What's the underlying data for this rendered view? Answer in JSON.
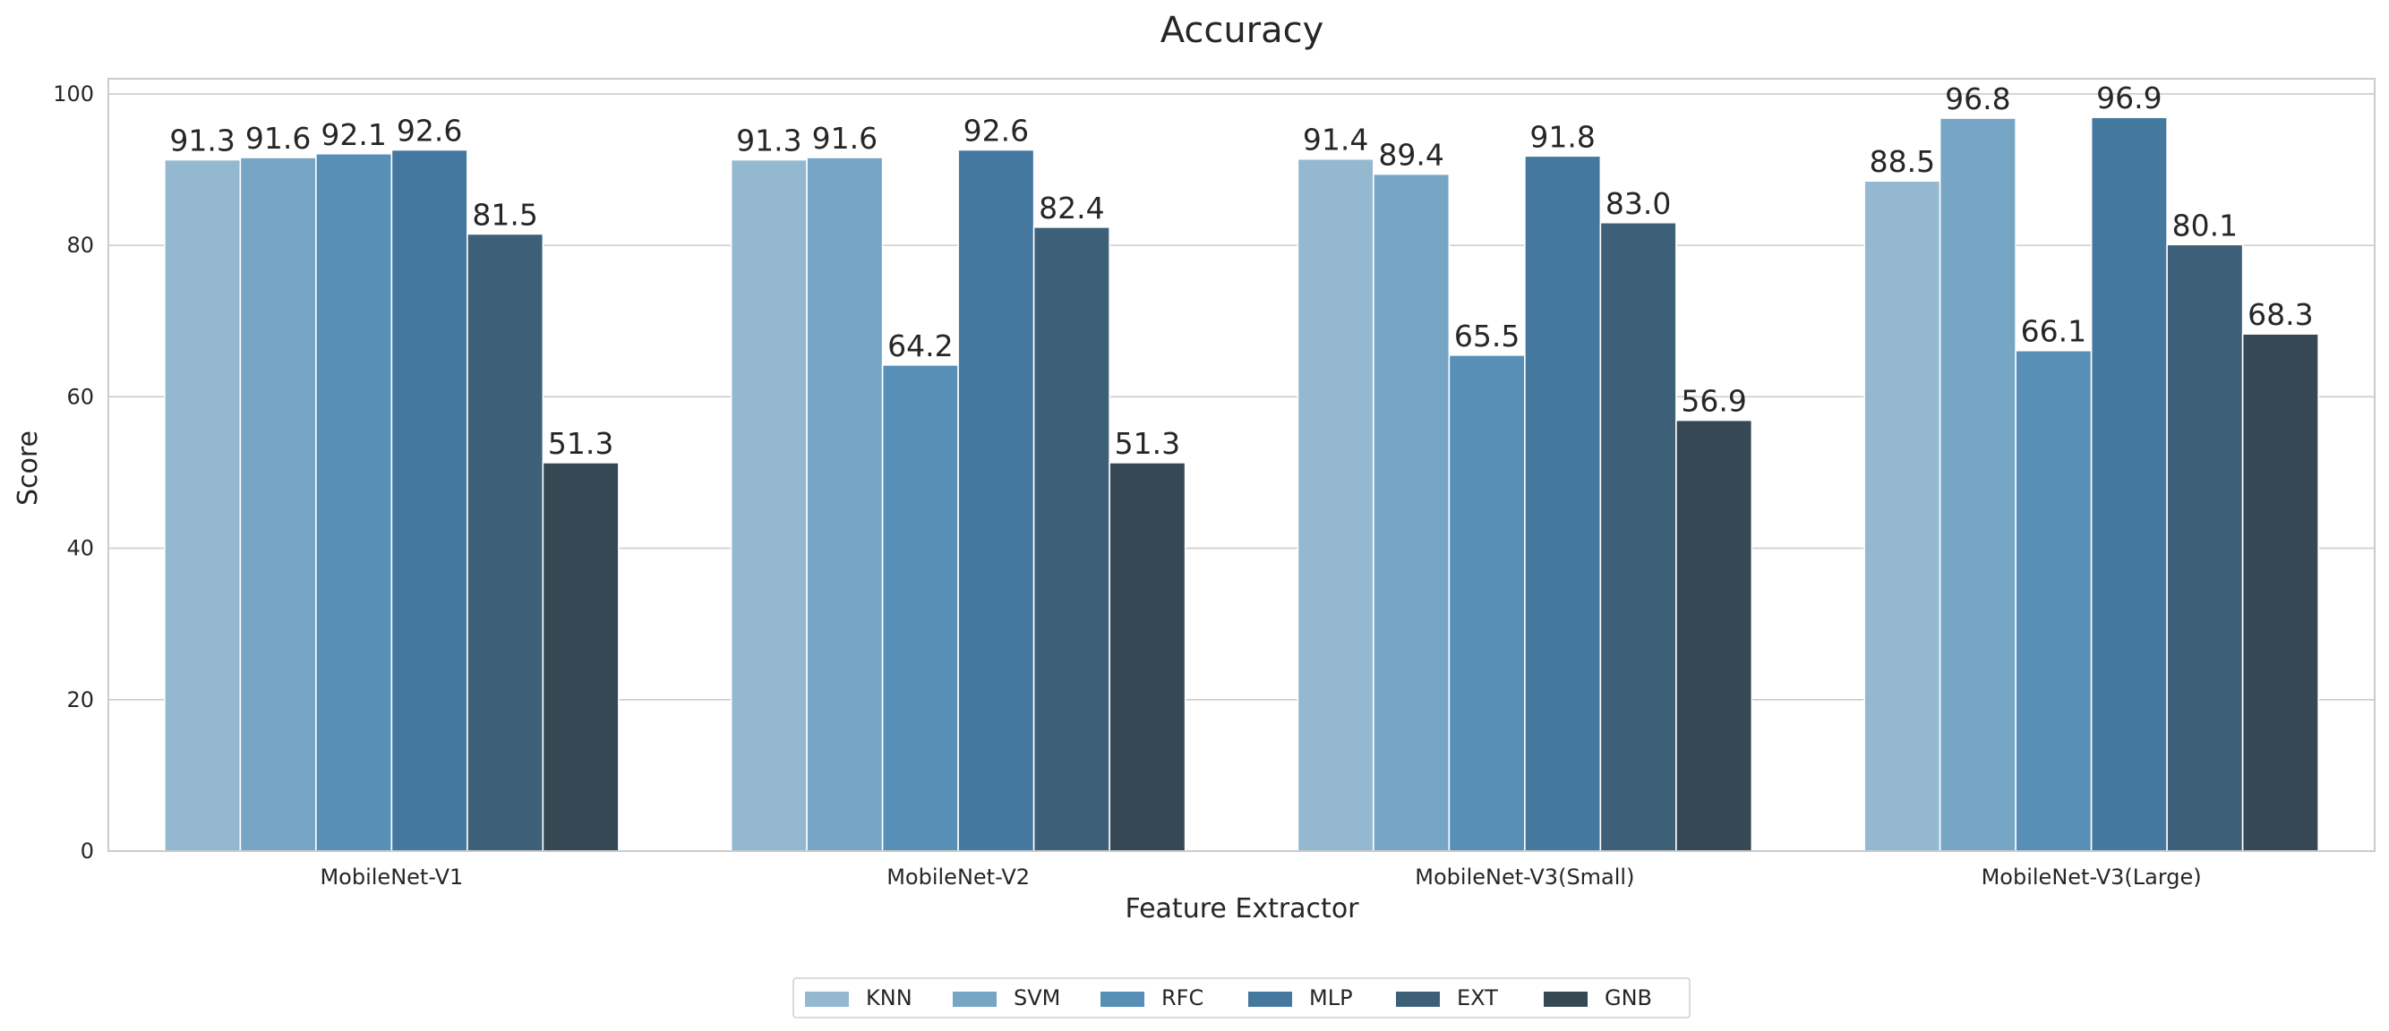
{
  "chart_data": {
    "type": "bar",
    "title": "Accuracy",
    "xlabel": "Feature Extractor",
    "ylabel": "Score",
    "ylim": [
      0,
      102
    ],
    "yticks": [
      0,
      20,
      40,
      60,
      80,
      100
    ],
    "grid": true,
    "legend_placement": "bottom-center",
    "categories": [
      "MobileNet-V1",
      "MobileNet-V2",
      "MobileNet-V3(Small)",
      "MobileNet-V3(Large)"
    ],
    "series": [
      {
        "name": "KNN",
        "color": "#95b8d1",
        "values": [
          91.3,
          91.3,
          91.4,
          88.5
        ]
      },
      {
        "name": "SVM",
        "color": "#76a5c6",
        "values": [
          91.6,
          91.6,
          89.4,
          96.8
        ]
      },
      {
        "name": "RFC",
        "color": "#588fb7",
        "values": [
          92.1,
          64.2,
          65.5,
          66.1
        ]
      },
      {
        "name": "MLP",
        "color": "#44789e",
        "values": [
          92.6,
          92.6,
          91.8,
          96.9
        ]
      },
      {
        "name": "EXT",
        "color": "#3d5f78",
        "values": [
          81.5,
          82.4,
          83.0,
          80.1
        ]
      },
      {
        "name": "GNB",
        "color": "#374855",
        "values": [
          51.3,
          51.3,
          56.9,
          68.3
        ]
      }
    ]
  }
}
